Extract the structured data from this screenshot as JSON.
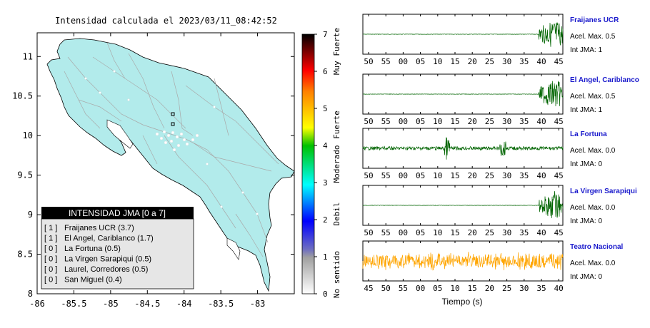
{
  "title": "Intensidad calculada el 2023/03/11_08:42:52",
  "map": {
    "x_ticks": [
      "-86",
      "-85.5",
      "-85",
      "-84.5",
      "-84",
      "-83.5",
      "-83"
    ],
    "y_ticks": [
      "11",
      "10.5",
      "10",
      "9.5",
      "9",
      "8.5",
      "8"
    ],
    "x_range": [
      -86,
      -82.5
    ],
    "y_range": [
      8,
      11.3
    ],
    "land_color": "#b2ebeb",
    "sea_color": "#ffffff",
    "legend": {
      "title": "INTENSIDAD JMA [0 a 7]",
      "items": [
        {
          "intensity": "[ 1 ]",
          "label": "Fraijanes UCR (3.7)"
        },
        {
          "intensity": "[ 1 ]",
          "label": "El Angel, Cariblanco (1.7)"
        },
        {
          "intensity": "[ 0 ]",
          "label": "La Fortuna (0.5)"
        },
        {
          "intensity": "[ 0 ]",
          "label": "La Virgen Sarapiqui (0.5)"
        },
        {
          "intensity": "[ 0 ]",
          "label": "Laurel, Corredores (0.5)"
        },
        {
          "intensity": "[ 0 ]",
          "label": "San Miguel (0.4)"
        }
      ]
    },
    "stations_marked": [
      {
        "name": "El Angel, Cariblanco",
        "lon": -84.17,
        "lat": 10.27
      },
      {
        "name": "Fraijanes UCR",
        "lon": -84.17,
        "lat": 10.13
      }
    ]
  },
  "colorbar": {
    "ticks": [
      "7",
      "6",
      "5",
      "4",
      "3",
      "2",
      "1",
      "0"
    ],
    "labels": [
      "Muy Fuerte",
      "Fuerte",
      "Moderado",
      "Debil",
      "No sentido"
    ]
  },
  "waveforms": [
    {
      "station": "Fraijanes UCR",
      "accel_label": "Acel. Max. 0.5",
      "int_label": "Int JMA: 1",
      "ticks": [
        "50",
        "55",
        "00",
        "05",
        "10",
        "15",
        "20",
        "25",
        "30",
        "35",
        "40",
        "45"
      ],
      "color": "#006400",
      "signal": "late"
    },
    {
      "station": "El Angel, Cariblanco",
      "accel_label": "Acel. Max. 0.5",
      "int_label": "Int JMA: 1",
      "ticks": [
        "50",
        "55",
        "00",
        "05",
        "10",
        "15",
        "20",
        "25",
        "30",
        "35",
        "40",
        "45"
      ],
      "color": "#006400",
      "signal": "late"
    },
    {
      "station": "La Fortuna",
      "accel_label": "Acel. Max. 0.0",
      "int_label": "Int JMA: 0",
      "ticks": [
        "50",
        "55",
        "00",
        "05",
        "10",
        "15",
        "20",
        "25",
        "30",
        "35",
        "40",
        "45"
      ],
      "color": "#006400",
      "signal": "noise"
    },
    {
      "station": "La Virgen Sarapiqui",
      "accel_label": "Acel. Max. 0.0",
      "int_label": "Int JMA: 0",
      "ticks": [
        "50",
        "55",
        "00",
        "05",
        "10",
        "15",
        "20",
        "25",
        "30",
        "35",
        "40",
        "45"
      ],
      "color": "#006400",
      "signal": "late"
    },
    {
      "station": "Teatro Nacional",
      "accel_label": "Acel. Max. 0.0",
      "int_label": "Int JMA: 0",
      "ticks": [
        "45",
        "50",
        "55",
        "00",
        "05",
        "10",
        "15",
        "20",
        "25",
        "30",
        "35",
        "40"
      ],
      "color": "#ffa500",
      "signal": "full"
    }
  ],
  "time_axis_label": "Tiempo (s)"
}
